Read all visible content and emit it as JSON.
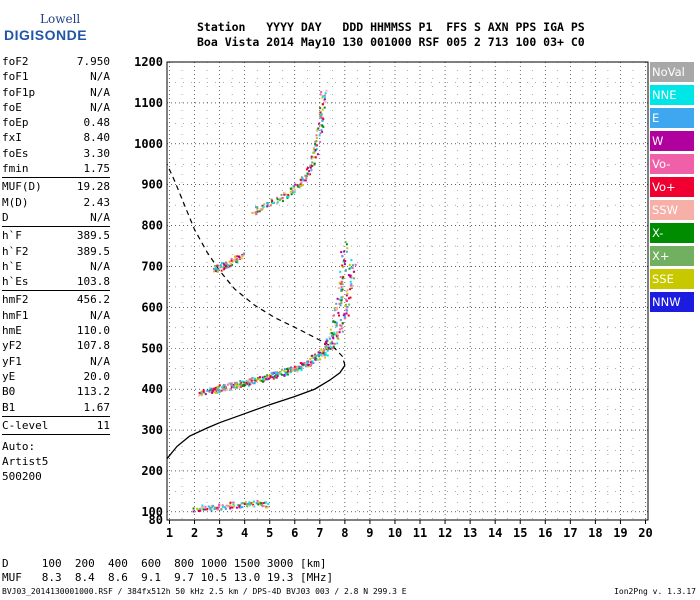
{
  "logo": {
    "line1": "Lowell",
    "line2": "DIGISONDE"
  },
  "header": {
    "line1": "Station   YYYY DAY   DDD HHMMSS P1  FFS S AXN PPS IGA PS",
    "line2": "Boa Vista 2014 May10 130 001000 RSF 005 2 713 100 03+ C0"
  },
  "params": [
    [
      {
        "n": "foF2",
        "v": "7.950"
      },
      {
        "n": "foF1",
        "v": "N/A"
      },
      {
        "n": "foF1p",
        "v": "N/A"
      },
      {
        "n": "foE",
        "v": "N/A"
      },
      {
        "n": "foEp",
        "v": "0.48"
      },
      {
        "n": "fxI",
        "v": "8.40"
      },
      {
        "n": "foEs",
        "v": "3.30"
      },
      {
        "n": "fmin",
        "v": "1.75"
      }
    ],
    [
      {
        "n": "MUF(D)",
        "v": "19.28"
      },
      {
        "n": "M(D)",
        "v": "2.43"
      },
      {
        "n": "D",
        "v": "N/A"
      }
    ],
    [
      {
        "n": "h`F",
        "v": "389.5"
      },
      {
        "n": "h`F2",
        "v": "389.5"
      },
      {
        "n": "h`E",
        "v": "N/A"
      },
      {
        "n": "h`Es",
        "v": "103.8"
      }
    ],
    [
      {
        "n": "hmF2",
        "v": "456.2"
      },
      {
        "n": "hmF1",
        "v": "N/A"
      },
      {
        "n": "hmE",
        "v": "110.0"
      },
      {
        "n": "yF2",
        "v": "107.8"
      },
      {
        "n": "yF1",
        "v": "N/A"
      },
      {
        "n": "yE",
        "v": "20.0"
      },
      {
        "n": "B0",
        "v": "113.2"
      },
      {
        "n": "B1",
        "v": "1.67"
      }
    ],
    [
      {
        "n": "C-level",
        "v": "11"
      }
    ]
  ],
  "auto": [
    "Auto:",
    "Artist5",
    "500200"
  ],
  "legend": [
    {
      "label": "NoVal",
      "color": "#a8a8a8"
    },
    {
      "label": "NNE",
      "color": "#00e6e6"
    },
    {
      "label": "E",
      "color": "#3ea7f0"
    },
    {
      "label": "W",
      "color": "#b0009e"
    },
    {
      "label": "Vo-",
      "color": "#f060a8"
    },
    {
      "label": "Vo+",
      "color": "#f00030"
    },
    {
      "label": "SSW",
      "color": "#f6b0a8"
    },
    {
      "label": "X-",
      "color": "#008c00"
    },
    {
      "label": "X+",
      "color": "#70b060"
    },
    {
      "label": "SSE",
      "color": "#c8c800"
    },
    {
      "label": "NNW",
      "color": "#1c1ce0"
    }
  ],
  "axes": {
    "x_ticks": [
      "1",
      "2",
      "3",
      "4",
      "5",
      "6",
      "7",
      "8",
      "9",
      "10",
      "11",
      "12",
      "13",
      "14",
      "15",
      "16",
      "17",
      "18",
      "19",
      "20"
    ],
    "y_ticks": [
      "80",
      "100",
      "200",
      "300",
      "400",
      "500",
      "600",
      "700",
      "800",
      "900",
      "1000",
      "1100",
      "1200"
    ]
  },
  "chart_data": {
    "type": "scatter",
    "xlim": [
      0.9,
      20.1
    ],
    "ylim": [
      80,
      1200
    ],
    "grid": true,
    "x_dash_lines": [
      1.5,
      2.5,
      3.5,
      4.5,
      5.5,
      6.5,
      7.5,
      8.5,
      9.5,
      10.5,
      11.5,
      12.5,
      13.5,
      14.5,
      15.5,
      16.5,
      17.5,
      18.5,
      19.5
    ],
    "y_dash_lines": [
      150,
      250,
      350,
      450,
      550,
      650,
      750,
      850,
      950,
      1050,
      1150
    ],
    "profile_solid": [
      [
        0.9,
        230
      ],
      [
        1.3,
        260
      ],
      [
        1.8,
        285
      ],
      [
        2.5,
        305
      ],
      [
        3.0,
        318
      ],
      [
        4.0,
        340
      ],
      [
        5.0,
        362
      ],
      [
        6.0,
        382
      ],
      [
        6.8,
        400
      ],
      [
        7.4,
        422
      ],
      [
        7.8,
        440
      ],
      [
        8.0,
        458
      ]
    ],
    "profile_dashed": [
      [
        8.0,
        458
      ],
      [
        7.9,
        480
      ],
      [
        7.6,
        500
      ],
      [
        7.0,
        520
      ],
      [
        6.2,
        545
      ],
      [
        5.2,
        575
      ],
      [
        4.4,
        605
      ],
      [
        3.6,
        645
      ],
      [
        3.0,
        690
      ],
      [
        2.5,
        735
      ],
      [
        2.0,
        790
      ],
      [
        1.6,
        850
      ],
      [
        1.2,
        910
      ],
      [
        0.9,
        950
      ]
    ],
    "traces": [
      {
        "name": "F2 o-trace",
        "points": [
          [
            2.2,
            392
          ],
          [
            2.6,
            398
          ],
          [
            3.0,
            404
          ],
          [
            3.6,
            412
          ],
          [
            4.2,
            420
          ],
          [
            4.8,
            430
          ],
          [
            5.4,
            440
          ],
          [
            6.0,
            452
          ],
          [
            6.5,
            466
          ],
          [
            7.0,
            490
          ],
          [
            7.3,
            515
          ],
          [
            7.55,
            560
          ],
          [
            7.75,
            620
          ],
          [
            7.88,
            680
          ],
          [
            7.95,
            760
          ]
        ]
      },
      {
        "name": "F2 x-trace",
        "points": [
          [
            2.7,
            398
          ],
          [
            3.2,
            405
          ],
          [
            3.8,
            414
          ],
          [
            4.5,
            425
          ],
          [
            5.2,
            437
          ],
          [
            5.9,
            450
          ],
          [
            6.5,
            463
          ],
          [
            7.0,
            480
          ],
          [
            7.5,
            510
          ],
          [
            7.8,
            550
          ],
          [
            8.05,
            600
          ],
          [
            8.2,
            660
          ],
          [
            8.3,
            720
          ]
        ]
      },
      {
        "name": "multiple F",
        "points": [
          [
            4.3,
            835
          ],
          [
            4.8,
            850
          ],
          [
            5.4,
            868
          ],
          [
            5.9,
            888
          ],
          [
            6.3,
            910
          ],
          [
            6.6,
            940
          ],
          [
            6.8,
            980
          ],
          [
            6.95,
            1030
          ],
          [
            7.05,
            1080
          ],
          [
            7.12,
            1140
          ]
        ]
      },
      {
        "name": "F echo 700",
        "points": [
          [
            2.8,
            695
          ],
          [
            3.0,
            700
          ],
          [
            3.3,
            708
          ],
          [
            3.6,
            718
          ],
          [
            3.9,
            730
          ]
        ]
      },
      {
        "name": "Es layer",
        "points": [
          [
            2.0,
            110
          ],
          [
            2.5,
            112
          ],
          [
            3.0,
            115
          ],
          [
            3.5,
            118
          ],
          [
            4.0,
            120
          ],
          [
            4.5,
            122
          ],
          [
            5.0,
            118
          ]
        ]
      }
    ]
  },
  "dtable": {
    "row1": "D     100  200  400  600  800 1000 1500 3000 [km]",
    "row2": "MUF   8.3  8.4  8.6  9.1  9.7 10.5 13.0 19.3 [MHz]"
  },
  "footer": {
    "left": "BVJ03_2014130001000.RSF / 384fx512h 50 kHz 2.5 km / DPS-4D BVJ03 003 / 2.8 N 299.3 E",
    "right": "Ion2Png v. 1.3.17"
  }
}
